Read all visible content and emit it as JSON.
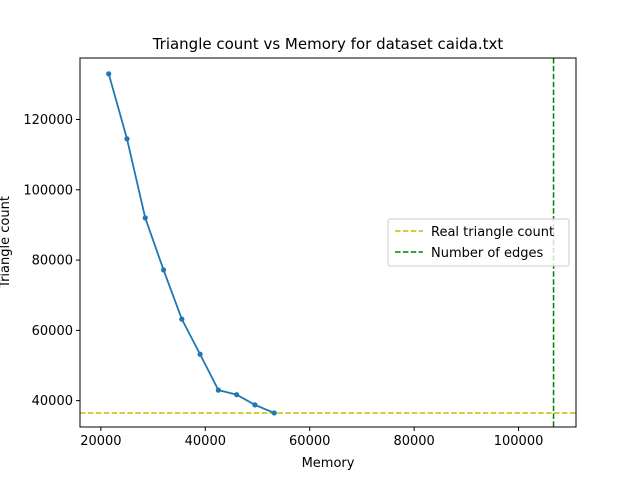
{
  "chart_data": {
    "type": "line",
    "title": "Triangle count vs Memory for dataset caida.txt",
    "xlabel": "Memory",
    "ylabel": "Triangle count",
    "xlim": [
      16000,
      111000
    ],
    "ylim": [
      32500,
      137500
    ],
    "xticks": [
      20000,
      40000,
      60000,
      80000,
      100000
    ],
    "yticks": [
      40000,
      60000,
      80000,
      100000,
      120000
    ],
    "xtick_labels": [
      "20000",
      "40000",
      "60000",
      "80000",
      "100000"
    ],
    "ytick_labels": [
      "40000",
      "60000",
      "80000",
      "100000",
      "120000"
    ],
    "grid": false,
    "legend_position": "center-right",
    "series": [
      {
        "color": "#1f77b4",
        "marker": "circle",
        "x": [
          21500,
          25000,
          28500,
          32000,
          35500,
          39000,
          42500,
          46000,
          49500,
          53200
        ],
        "y": [
          133000,
          114500,
          92000,
          77200,
          63200,
          53200,
          43000,
          41700,
          38800,
          36500
        ]
      }
    ],
    "reference_lines": [
      {
        "orientation": "horizontal",
        "value": 36500,
        "color": "#bfbf00",
        "style": "dashed",
        "label": "Real triangle count"
      },
      {
        "orientation": "vertical",
        "value": 106700,
        "color": "#008000",
        "style": "dashed",
        "label": "Number of edges"
      }
    ]
  }
}
